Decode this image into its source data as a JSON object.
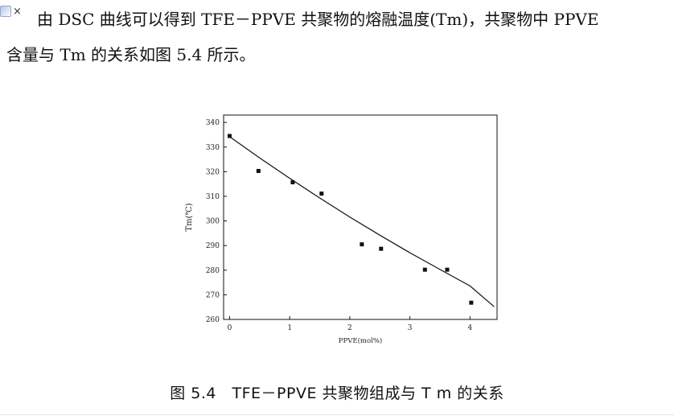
{
  "toolbar": {
    "icon": "note-icon",
    "close_label": "×"
  },
  "document": {
    "paragraph_line1": "由 DSC 曲线可以得到 TFE－PPVE 共聚物的熔融温度(Tm)，共聚物中 PPVE",
    "paragraph_line2": "含量与 Tm 的关系如图 5.4 所示。",
    "caption": "图 5.4　TFE－PPVE 共聚物组成与 T m 的关系"
  },
  "chart_data": {
    "type": "scatter",
    "title": "",
    "xlabel": "PPVE(mol%)",
    "ylabel": "Tm(℃)",
    "xlim": [
      -0.1,
      4.45
    ],
    "ylim": [
      260,
      343
    ],
    "x_ticks": [
      0,
      1,
      2,
      3,
      4
    ],
    "y_ticks": [
      260,
      270,
      280,
      290,
      300,
      310,
      320,
      330,
      340
    ],
    "grid": false,
    "legend": "none",
    "series": [
      {
        "points": [
          {
            "x": 0.0,
            "y": 334.5
          },
          {
            "x": 0.48,
            "y": 320.3
          },
          {
            "x": 1.05,
            "y": 315.7
          },
          {
            "x": 1.53,
            "y": 311.1
          },
          {
            "x": 2.2,
            "y": 290.5
          },
          {
            "x": 2.52,
            "y": 288.7
          },
          {
            "x": 3.25,
            "y": 280.2
          },
          {
            "x": 3.62,
            "y": 280.2
          },
          {
            "x": 4.02,
            "y": 266.8
          }
        ]
      }
    ],
    "fit_curve": [
      {
        "x": 0.0,
        "y": 334.2
      },
      {
        "x": 0.5,
        "y": 325.6
      },
      {
        "x": 1.0,
        "y": 317.3
      },
      {
        "x": 1.5,
        "y": 309.3
      },
      {
        "x": 2.0,
        "y": 301.6
      },
      {
        "x": 2.5,
        "y": 294.2
      },
      {
        "x": 3.0,
        "y": 287.1
      },
      {
        "x": 3.5,
        "y": 280.3
      },
      {
        "x": 4.0,
        "y": 273.6
      },
      {
        "x": 4.4,
        "y": 265.2
      }
    ]
  }
}
